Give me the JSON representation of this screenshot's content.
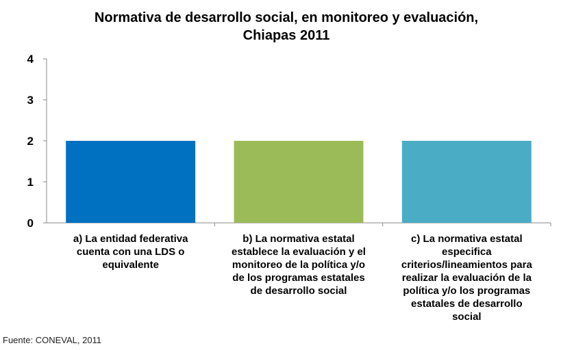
{
  "chart_data": {
    "type": "bar",
    "title_lines": [
      "Normativa de desarrollo social, en monitoreo y evaluación,",
      "Chiapas 2011"
    ],
    "categories": [
      {
        "label_lines": [
          "a) La entidad federativa",
          "cuenta con una LDS o",
          "equivalente"
        ],
        "value": 2,
        "color": "#0070C0"
      },
      {
        "label_lines": [
          "b) La normativa estatal",
          "establece la evaluación y el",
          "monitoreo de la política y/o",
          "de los programas estatales",
          "de desarrollo social"
        ],
        "value": 2,
        "color": "#9BBB59"
      },
      {
        "label_lines": [
          "c) La normativa estatal",
          "especifica",
          "criterios/lineamientos para",
          "realizar la evaluación de la",
          "política y/o los programas",
          "estatales de desarrollo",
          "social"
        ],
        "value": 2,
        "color": "#4BACC6"
      }
    ],
    "yticks": [
      "0",
      "1",
      "2",
      "3",
      "4"
    ],
    "ylim": [
      0,
      4
    ],
    "grid": false,
    "legend": "none"
  },
  "footer": {
    "source": "Fuente: CONEVAL, 2011"
  }
}
